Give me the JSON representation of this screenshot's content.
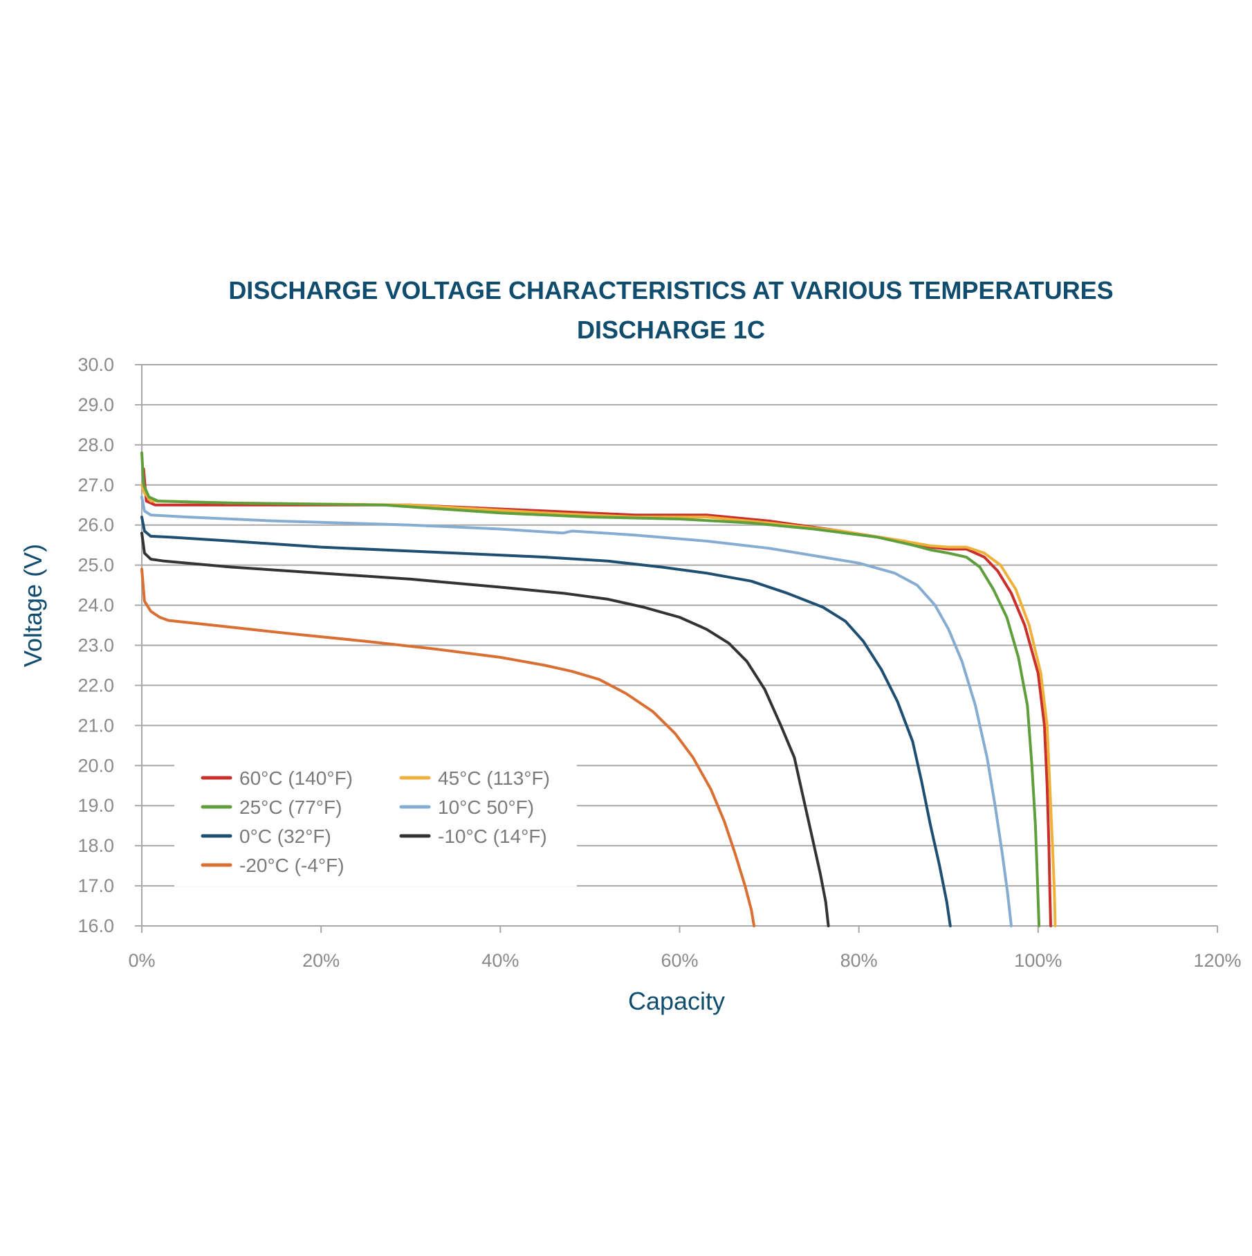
{
  "chart_data": {
    "type": "line",
    "title": "DISCHARGE VOLTAGE CHARACTERISTICS AT VARIOUS TEMPERATURES",
    "subtitle": "DISCHARGE 1C",
    "xlabel": "Capacity",
    "ylabel": "Voltage (V)",
    "xlim": [
      0,
      120
    ],
    "ylim": [
      16,
      30
    ],
    "x_ticks": [
      0,
      20,
      40,
      60,
      80,
      100,
      120
    ],
    "x_tick_labels": [
      "0%",
      "20%",
      "40%",
      "60%",
      "80%",
      "100%",
      "120%"
    ],
    "y_ticks": [
      16,
      17,
      18,
      19,
      20,
      21,
      22,
      23,
      24,
      25,
      26,
      27,
      28,
      29,
      30
    ],
    "y_tick_labels": [
      "16.0",
      "17.0",
      "18.0",
      "19.0",
      "20.0",
      "21.0",
      "22.0",
      "23.0",
      "24.0",
      "25.0",
      "26.0",
      "27.0",
      "28.0",
      "29.0",
      "30.0"
    ],
    "grid": "horizontal",
    "legend_position": "bottom-left",
    "series": [
      {
        "name": "60°C (140°F)",
        "color": "#c9302c",
        "points": [
          [
            0.2,
            27.4
          ],
          [
            0.5,
            26.6
          ],
          [
            1.5,
            26.5
          ],
          [
            10,
            26.5
          ],
          [
            30,
            26.5
          ],
          [
            45,
            26.35
          ],
          [
            55,
            26.25
          ],
          [
            63,
            26.25
          ],
          [
            70,
            26.1
          ],
          [
            78,
            25.85
          ],
          [
            85,
            25.6
          ],
          [
            88,
            25.45
          ],
          [
            90,
            25.4
          ],
          [
            92,
            25.4
          ],
          [
            94,
            25.2
          ],
          [
            95.5,
            24.85
          ],
          [
            97,
            24.3
          ],
          [
            98.5,
            23.5
          ],
          [
            100,
            22.3
          ],
          [
            100.7,
            21
          ],
          [
            101,
            19.5
          ],
          [
            101.2,
            18
          ],
          [
            101.3,
            16.9
          ],
          [
            101.4,
            16
          ]
        ]
      },
      {
        "name": "45°C (113°F)",
        "color": "#f0b13a",
        "points": [
          [
            0,
            27
          ],
          [
            0.3,
            26.8
          ],
          [
            1,
            26.6
          ],
          [
            10,
            26.55
          ],
          [
            30,
            26.5
          ],
          [
            45,
            26.3
          ],
          [
            55,
            26.2
          ],
          [
            63,
            26.2
          ],
          [
            70,
            26.05
          ],
          [
            78,
            25.85
          ],
          [
            85,
            25.6
          ],
          [
            88,
            25.48
          ],
          [
            90,
            25.45
          ],
          [
            92,
            25.45
          ],
          [
            94,
            25.3
          ],
          [
            95.8,
            25
          ],
          [
            97.5,
            24.4
          ],
          [
            99,
            23.5
          ],
          [
            100.3,
            22.3
          ],
          [
            101,
            21
          ],
          [
            101.3,
            19.5
          ],
          [
            101.6,
            18
          ],
          [
            101.8,
            16.9
          ],
          [
            101.9,
            16
          ]
        ]
      },
      {
        "name": "25°C (77°F)",
        "color": "#5f9e3c",
        "points": [
          [
            0,
            27.8
          ],
          [
            0.2,
            27
          ],
          [
            0.8,
            26.7
          ],
          [
            1.8,
            26.6
          ],
          [
            10,
            26.55
          ],
          [
            27,
            26.5
          ],
          [
            40,
            26.3
          ],
          [
            50,
            26.2
          ],
          [
            60,
            26.15
          ],
          [
            68,
            26.05
          ],
          [
            75,
            25.9
          ],
          [
            82,
            25.7
          ],
          [
            86,
            25.5
          ],
          [
            88,
            25.38
          ],
          [
            90,
            25.3
          ],
          [
            92,
            25.2
          ],
          [
            93.5,
            24.95
          ],
          [
            95,
            24.4
          ],
          [
            96.5,
            23.7
          ],
          [
            97.8,
            22.7
          ],
          [
            98.8,
            21.5
          ],
          [
            99.3,
            20
          ],
          [
            99.7,
            18.5
          ],
          [
            99.9,
            17.3
          ],
          [
            100.1,
            16
          ]
        ]
      },
      {
        "name": "10°C 50°F)",
        "color": "#86acd2",
        "points": [
          [
            0,
            26.7
          ],
          [
            0.3,
            26.35
          ],
          [
            1,
            26.25
          ],
          [
            5,
            26.2
          ],
          [
            15,
            26.1
          ],
          [
            30,
            26
          ],
          [
            40,
            25.9
          ],
          [
            47,
            25.8
          ],
          [
            48,
            25.85
          ],
          [
            55,
            25.75
          ],
          [
            63,
            25.6
          ],
          [
            70,
            25.42
          ],
          [
            76,
            25.2
          ],
          [
            80,
            25.05
          ],
          [
            84,
            24.8
          ],
          [
            86.5,
            24.5
          ],
          [
            88.5,
            24
          ],
          [
            90,
            23.4
          ],
          [
            91.5,
            22.6
          ],
          [
            93,
            21.5
          ],
          [
            94.3,
            20.2
          ],
          [
            95.2,
            19
          ],
          [
            96,
            17.8
          ],
          [
            96.6,
            16.8
          ],
          [
            97,
            16
          ]
        ]
      },
      {
        "name": "0°C (32°F)",
        "color": "#1e4f73",
        "points": [
          [
            0,
            26.2
          ],
          [
            0.3,
            25.85
          ],
          [
            1,
            25.72
          ],
          [
            3,
            25.7
          ],
          [
            10,
            25.6
          ],
          [
            20,
            25.45
          ],
          [
            35,
            25.3
          ],
          [
            45,
            25.2
          ],
          [
            52,
            25.1
          ],
          [
            58,
            24.95
          ],
          [
            63,
            24.8
          ],
          [
            68,
            24.6
          ],
          [
            72,
            24.3
          ],
          [
            76,
            23.95
          ],
          [
            78.5,
            23.6
          ],
          [
            80.5,
            23.1
          ],
          [
            82.5,
            22.4
          ],
          [
            84.3,
            21.6
          ],
          [
            86,
            20.6
          ],
          [
            87,
            19.6
          ],
          [
            88,
            18.5
          ],
          [
            89,
            17.5
          ],
          [
            89.8,
            16.6
          ],
          [
            90.2,
            16
          ]
        ]
      },
      {
        "name": "-10°C (14°F)",
        "color": "#333333",
        "points": [
          [
            0,
            25.8
          ],
          [
            0.3,
            25.3
          ],
          [
            1,
            25.15
          ],
          [
            2.5,
            25.1
          ],
          [
            10,
            24.95
          ],
          [
            20,
            24.8
          ],
          [
            30,
            24.65
          ],
          [
            40,
            24.45
          ],
          [
            47,
            24.3
          ],
          [
            52,
            24.15
          ],
          [
            56,
            23.95
          ],
          [
            60,
            23.7
          ],
          [
            63,
            23.4
          ],
          [
            65.5,
            23.05
          ],
          [
            67.5,
            22.6
          ],
          [
            69.5,
            21.9
          ],
          [
            71.3,
            21
          ],
          [
            72.8,
            20.2
          ],
          [
            73.8,
            19.2
          ],
          [
            74.8,
            18.2
          ],
          [
            75.7,
            17.3
          ],
          [
            76.3,
            16.6
          ],
          [
            76.6,
            16
          ]
        ]
      },
      {
        "name": "-20°C (-4°F)",
        "color": "#d96f33",
        "points": [
          [
            0,
            24.9
          ],
          [
            0.3,
            24.1
          ],
          [
            1,
            23.85
          ],
          [
            2,
            23.7
          ],
          [
            3,
            23.62
          ],
          [
            10,
            23.45
          ],
          [
            17,
            23.28
          ],
          [
            25,
            23.1
          ],
          [
            33,
            22.9
          ],
          [
            40,
            22.7
          ],
          [
            45,
            22.5
          ],
          [
            48,
            22.35
          ],
          [
            51,
            22.15
          ],
          [
            54,
            21.8
          ],
          [
            57,
            21.35
          ],
          [
            59.5,
            20.8
          ],
          [
            61.5,
            20.2
          ],
          [
            63.5,
            19.4
          ],
          [
            65,
            18.6
          ],
          [
            66.2,
            17.8
          ],
          [
            67.3,
            17
          ],
          [
            68,
            16.4
          ],
          [
            68.3,
            16
          ]
        ]
      }
    ]
  }
}
